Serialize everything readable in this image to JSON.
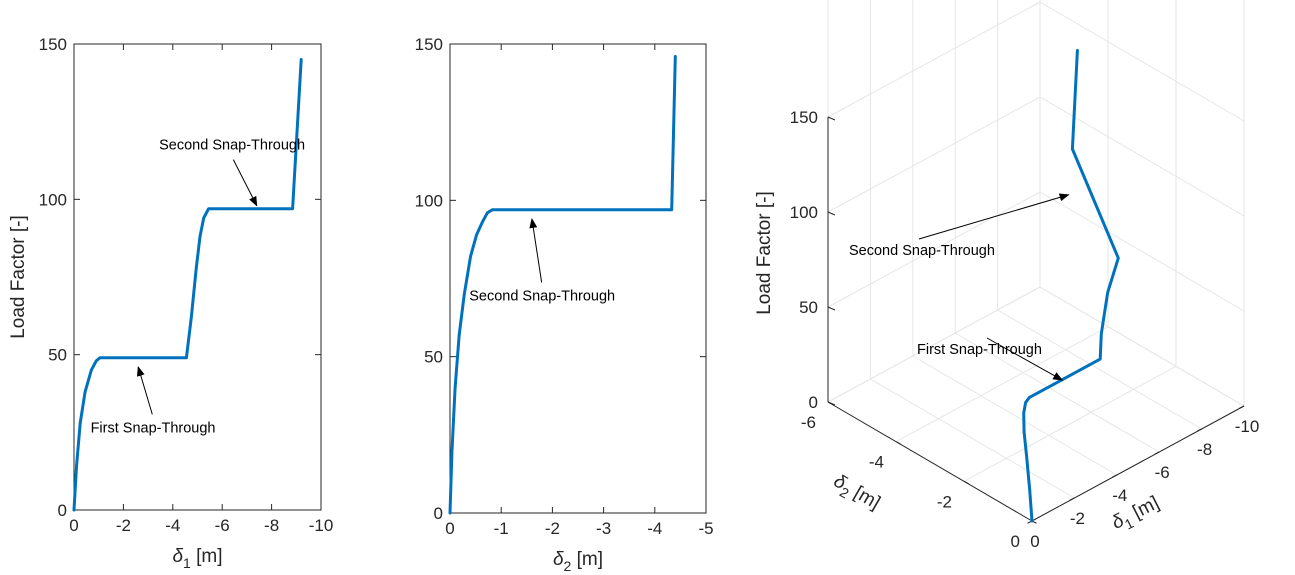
{
  "chart_data": [
    {
      "type": "line",
      "xlabel_sym": "δ",
      "xlabel_sub": "1",
      "xlabel_unit": " [m]",
      "ylabel": "Load Factor [-]",
      "xlim": [
        0,
        -10
      ],
      "ylim": [
        0,
        150
      ],
      "xticks": [
        "0",
        "-2",
        "-4",
        "-6",
        "-8",
        "-10"
      ],
      "xtick_values": [
        0,
        -2,
        -4,
        -6,
        -8,
        -10
      ],
      "yticks": [
        "0",
        "50",
        "100",
        "150"
      ],
      "ytick_values": [
        0,
        50,
        100,
        150
      ],
      "series": [
        {
          "color": "#0072BD",
          "x": [
            0,
            -0.1,
            -0.25,
            -0.45,
            -0.7,
            -0.9,
            -1.05,
            -1.2,
            -4.55,
            -4.75,
            -4.95,
            -5.1,
            -5.25,
            -5.45,
            -8.85,
            -9.2
          ],
          "y": [
            0,
            14,
            28,
            38,
            45,
            48,
            49,
            49,
            49,
            62,
            78,
            88,
            94,
            97,
            97,
            145
          ]
        }
      ],
      "annotations": [
        {
          "text": "Second Snap-Through",
          "x": -7.4,
          "y": 97,
          "tx": -6.4,
          "ty": 116
        },
        {
          "text": "First Snap-Through",
          "x": -2.6,
          "y": 47,
          "tx": -3.2,
          "ty": 25
        }
      ]
    },
    {
      "type": "line",
      "xlabel_sym": "δ",
      "xlabel_sub": "2",
      "xlabel_unit": " [m]",
      "xlim": [
        0,
        -5
      ],
      "ylim": [
        0,
        150
      ],
      "xticks": [
        "0",
        "-1",
        "-2",
        "-3",
        "-4",
        "-5"
      ],
      "xtick_values": [
        0,
        -1,
        -2,
        -3,
        -4,
        -5
      ],
      "yticks": [
        "0",
        "50",
        "100",
        "150"
      ],
      "ytick_values": [
        0,
        50,
        100,
        150
      ],
      "series": [
        {
          "color": "#0072BD",
          "x": [
            0,
            -0.04,
            -0.1,
            -0.18,
            -0.28,
            -0.4,
            -0.52,
            -0.63,
            -0.73,
            -0.83,
            -4.33,
            -4.4
          ],
          "y": [
            0,
            20,
            40,
            57,
            70,
            82,
            89,
            93,
            96,
            97,
            97,
            146
          ]
        }
      ],
      "annotations": [
        {
          "text": "Second Snap-Through",
          "x": -1.6,
          "y": 95,
          "tx": -1.8,
          "ty": 68
        }
      ]
    },
    {
      "type": "line",
      "xlabel_sym": "δ",
      "xlabel_sub": "1",
      "xlabel_unit": " [m]",
      "ylabel_sym": "δ",
      "ylabel_sub": "2",
      "ylabel_unit": " [m]",
      "zlabel": "Load Factor [-]",
      "xlim": [
        0,
        -10
      ],
      "ylim": [
        0,
        -6
      ],
      "zlim": [
        0,
        150
      ],
      "xticks": [
        "0",
        "-2",
        "-4",
        "-6",
        "-8",
        "-10"
      ],
      "xtick_values": [
        0,
        -2,
        -4,
        -6,
        -8,
        -10
      ],
      "yticks": [
        "0",
        "-2",
        "-4",
        "-6"
      ],
      "ytick_values": [
        0,
        -2,
        -4,
        -6
      ],
      "zticks": [
        "0",
        "50",
        "100",
        "150"
      ],
      "ztick_values": [
        0,
        50,
        100,
        150
      ],
      "grid": true,
      "series": [
        {
          "color": "#0072BD",
          "d1": [
            0,
            -0.05,
            -0.15,
            -0.35,
            -0.65,
            -0.95,
            -1.2,
            -4.55,
            -4.55,
            -4.6,
            -4.9,
            -5.4,
            -8.85,
            -9.2
          ],
          "d2": [
            0,
            -0.1,
            -0.25,
            -0.45,
            -0.65,
            -0.78,
            -0.83,
            -0.83,
            -0.83,
            -0.83,
            -0.83,
            -0.83,
            -4.33,
            -4.4
          ],
          "z": [
            0,
            15,
            30,
            40,
            46,
            48.5,
            49,
            49,
            49,
            62,
            82,
            97,
            97,
            146
          ]
        }
      ],
      "annotations": [
        {
          "text": "Second Snap-Through",
          "x": -7.0,
          "y": -3.2,
          "z": 97,
          "tx": 849,
          "ty": 255
        },
        {
          "text": "First Snap-Through",
          "x": -2.9,
          "y": -0.83,
          "z": 49,
          "tx": 917,
          "ty": 354
        }
      ]
    }
  ]
}
